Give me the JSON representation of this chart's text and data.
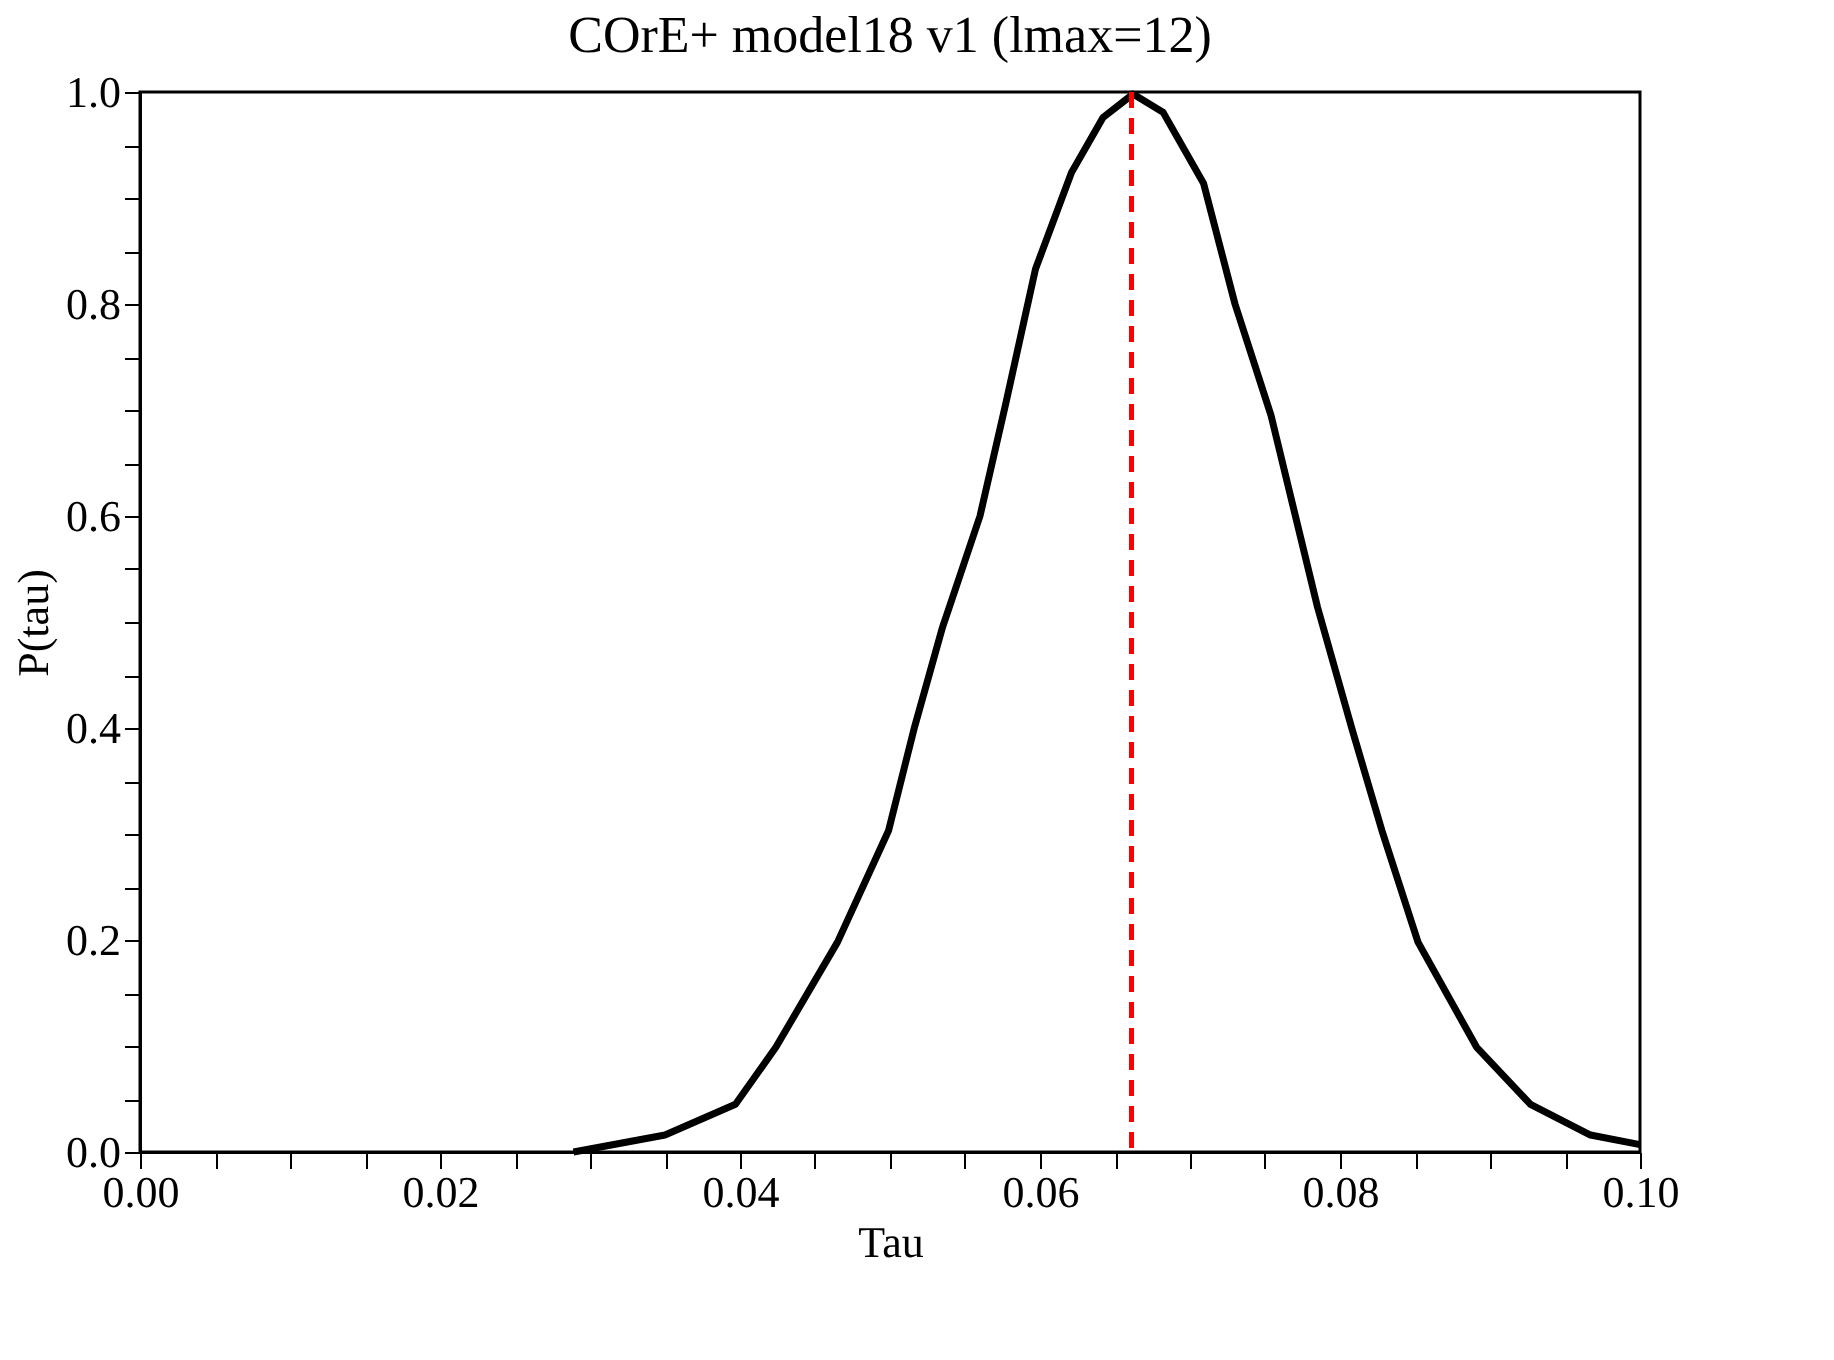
{
  "chart_data": {
    "type": "line",
    "title": "COrE+ model18 v1 (lmax=12)",
    "xlabel": "Tau",
    "ylabel": "P(tau)",
    "x": [
      0.0289,
      0.035,
      0.0397,
      0.0424,
      0.0465,
      0.0499,
      0.0516,
      0.0535,
      0.056,
      0.0577,
      0.0597,
      0.0621,
      0.0642,
      0.0662,
      0.0682,
      0.0709,
      0.073,
      0.0754,
      0.0785,
      0.0808,
      0.0828,
      0.0852,
      0.0891,
      0.0927,
      0.0967,
      0.1
    ],
    "series": [
      {
        "color": "#000000",
        "values": [
          0.0,
          0.016,
          0.045,
          0.099,
          0.198,
          0.303,
          0.399,
          0.495,
          0.6,
          0.705,
          0.833,
          0.924,
          0.976,
          0.998,
          0.981,
          0.914,
          0.8,
          0.695,
          0.514,
          0.399,
          0.303,
          0.198,
          0.099,
          0.045,
          0.016,
          0.007
        ]
      }
    ],
    "xlim": [
      0,
      0.1
    ],
    "ylim": [
      0,
      1.0
    ],
    "xticks": [
      {
        "value": 0,
        "label": "0.00"
      },
      {
        "value": 0.005,
        "label": null
      },
      {
        "value": 0.01,
        "label": null
      },
      {
        "value": 0.015,
        "label": null
      },
      {
        "value": 0.02,
        "label": "0.02"
      },
      {
        "value": 0.025,
        "label": null
      },
      {
        "value": 0.03,
        "label": null
      },
      {
        "value": 0.035,
        "label": null
      },
      {
        "value": 0.04,
        "label": "0.04"
      },
      {
        "value": 0.045,
        "label": null
      },
      {
        "value": 0.05,
        "label": null
      },
      {
        "value": 0.055,
        "label": null
      },
      {
        "value": 0.06,
        "label": "0.06"
      },
      {
        "value": 0.065,
        "label": null
      },
      {
        "value": 0.07,
        "label": null
      },
      {
        "value": 0.075,
        "label": null
      },
      {
        "value": 0.08,
        "label": "0.08"
      },
      {
        "value": 0.085,
        "label": null
      },
      {
        "value": 0.09,
        "label": null
      },
      {
        "value": 0.095,
        "label": null
      },
      {
        "value": 0.1,
        "label": "0.10"
      }
    ],
    "yticks": [
      {
        "value": 0,
        "label": "0.0"
      },
      {
        "value": 0.05,
        "label": null
      },
      {
        "value": 0.1,
        "label": null
      },
      {
        "value": 0.15,
        "label": null
      },
      {
        "value": 0.2,
        "label": "0.2"
      },
      {
        "value": 0.25,
        "label": null
      },
      {
        "value": 0.3,
        "label": null
      },
      {
        "value": 0.35,
        "label": null
      },
      {
        "value": 0.4,
        "label": "0.4"
      },
      {
        "value": 0.45,
        "label": null
      },
      {
        "value": 0.5,
        "label": null
      },
      {
        "value": 0.55,
        "label": null
      },
      {
        "value": 0.6,
        "label": "0.6"
      },
      {
        "value": 0.65,
        "label": null
      },
      {
        "value": 0.7,
        "label": null
      },
      {
        "value": 0.75,
        "label": null
      },
      {
        "value": 0.8,
        "label": "0.8"
      },
      {
        "value": 0.85,
        "label": null
      },
      {
        "value": 0.9,
        "label": null
      },
      {
        "value": 0.95,
        "label": null
      },
      {
        "value": 1.0,
        "label": "1.0"
      }
    ],
    "ref_lines": [
      {
        "axis": "x",
        "value": 0.0661,
        "color": "#ff0000",
        "line_style": "dashed"
      }
    ],
    "grid": false,
    "marker": "none",
    "line_style": "solid"
  }
}
